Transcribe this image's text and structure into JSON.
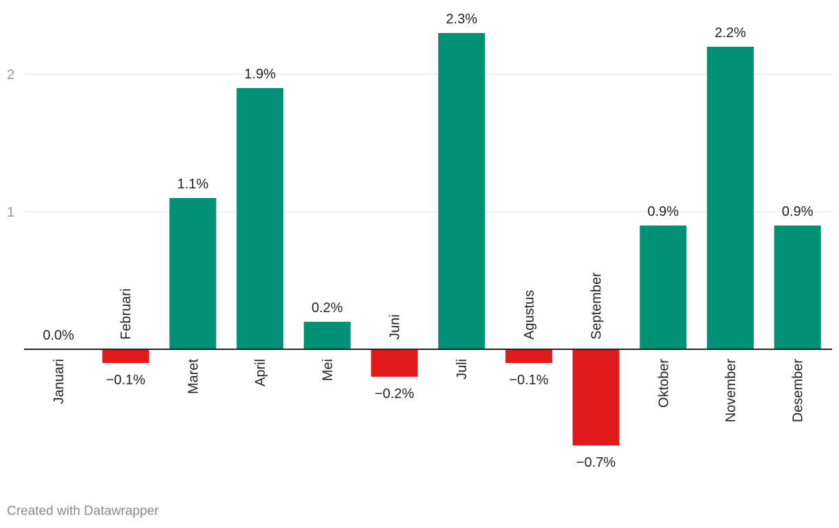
{
  "chart_data": {
    "type": "bar",
    "categories": [
      "Januari",
      "Februari",
      "Maret",
      "April",
      "Mei",
      "Juni",
      "Juli",
      "Agustus",
      "September",
      "Oktober",
      "November",
      "Desember"
    ],
    "values": [
      0.0,
      -0.1,
      1.1,
      1.9,
      0.2,
      -0.2,
      2.3,
      -0.1,
      -0.7,
      0.9,
      2.2,
      0.9
    ],
    "data_labels": [
      "0.0%",
      "−0.1%",
      "1.1%",
      "1.9%",
      "0.2%",
      "−0.2%",
      "2.3%",
      "−0.1%",
      "−0.7%",
      "0.9%",
      "2.2%",
      "0.9%"
    ],
    "y_ticks": [
      1,
      2
    ],
    "y_tick_labels": [
      "1",
      "2"
    ],
    "ylim": [
      -0.9,
      2.5
    ],
    "grid": true,
    "colors": {
      "positive": "#009075",
      "negative": "#e31a1c",
      "grid": "#dddddd",
      "baseline": "#222222",
      "tick_text": "#999999",
      "label_text": "#222222"
    }
  },
  "footer": {
    "credit": "Created with Datawrapper"
  }
}
